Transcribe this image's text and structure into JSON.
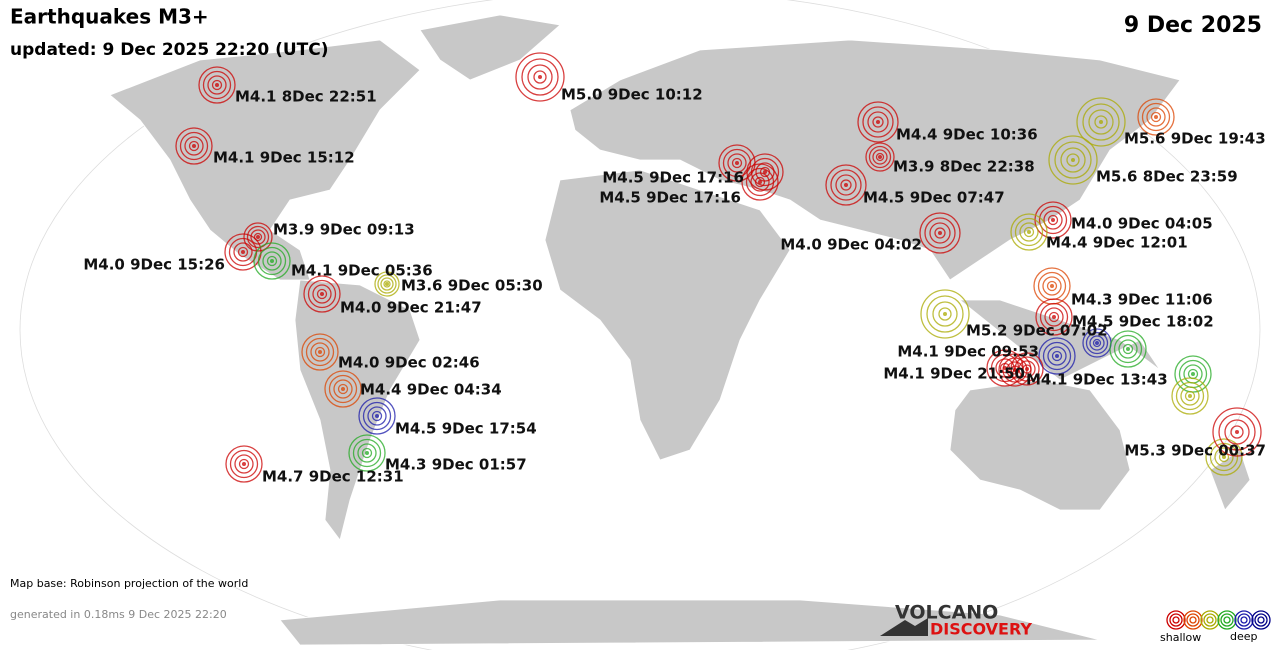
{
  "header": {
    "title": "Earthquakes M3+",
    "updated": "updated:  9 Dec 2025 22:20 (UTC)",
    "date": "9 Dec 2025"
  },
  "quakes": [
    {
      "label": "M4.1  8Dec 22:51",
      "color": "#cc0000"
    },
    {
      "label": "M5.0  9Dec 10:12",
      "color": "#cc0000"
    },
    {
      "label": "M4.1  9Dec 15:12",
      "color": "#cc0000"
    },
    {
      "label": "M3.9  9Dec 09:13",
      "color": "#cc0000"
    },
    {
      "label": "M4.0  9Dec 15:26",
      "color": "#cc0000"
    },
    {
      "label": "M4.1  9Dec 05:36",
      "color": "#22aa22"
    },
    {
      "label": "M3.6  9Dec 05:30",
      "color": "#aaaa00"
    },
    {
      "label": "M4.0  9Dec 21:47",
      "color": "#cc0000"
    },
    {
      "label": "M4.0  9Dec 02:46",
      "color": "#dd4400"
    },
    {
      "label": "M4.4  9Dec 04:34",
      "color": "#dd4400"
    },
    {
      "label": "M4.5  9Dec 17:54",
      "color": "#1a1aaa"
    },
    {
      "label": "M4.3  9Dec 01:57",
      "color": "#22aa22"
    },
    {
      "label": "M4.7  9Dec 12:31",
      "color": "#cc0000"
    },
    {
      "label": "M4.5  9Dec 17:16",
      "color": "#cc0000"
    },
    {
      "label": "M4.5  9Dec 17:16",
      "color": "#cc0000"
    },
    {
      "label": "M4.4  9Dec 10:36",
      "color": "#cc0000"
    },
    {
      "label": "M3.9  8Dec 22:38",
      "color": "#cc0000"
    },
    {
      "label": "M4.5  9Dec 07:47",
      "color": "#cc0000"
    },
    {
      "label": "M4.0  9Dec 04:02",
      "color": "#cc0000"
    },
    {
      "label": "M5.6  9Dec 19:43",
      "color": "#aaaa00"
    },
    {
      "label": "M5.6  8Dec 23:59",
      "color": "#aaaa00"
    },
    {
      "label": "M4.0  9Dec 04:05",
      "color": "#cc0000"
    },
    {
      "label": "M4.4  9Dec 12:01",
      "color": "#aaaa00"
    },
    {
      "label": "M4.3  9Dec 11:06",
      "color": "#dd4400"
    },
    {
      "label": "M4.5  9Dec 18:02",
      "color": "#cc0000"
    },
    {
      "label": "M5.2  9Dec 07:02",
      "color": "#aaaa00"
    },
    {
      "label": "M4.1  9Dec 09:53",
      "color": "#1a1aaa"
    },
    {
      "label": "M4.1  9Dec 21:50",
      "color": "#cc0000"
    },
    {
      "label": "M4.1  9Dec 13:43",
      "color": "#cc0000"
    },
    {
      "label": "M5.3  9Dec 00:37",
      "color": "#cc0000"
    }
  ],
  "footer": {
    "map_base": "Map base: Robinson projection of the world",
    "generated": "generated in 0.18ms  9 Dec 2025 22:20"
  },
  "logo": {
    "line1": "VOLCANO",
    "line2": "DISCOVERY"
  },
  "legend": {
    "colors": [
      "#cc0000",
      "#dd4400",
      "#aaaa00",
      "#22aa22",
      "#1a1aaa",
      "#000088"
    ],
    "shallow": "shallow",
    "deep": "deep"
  }
}
